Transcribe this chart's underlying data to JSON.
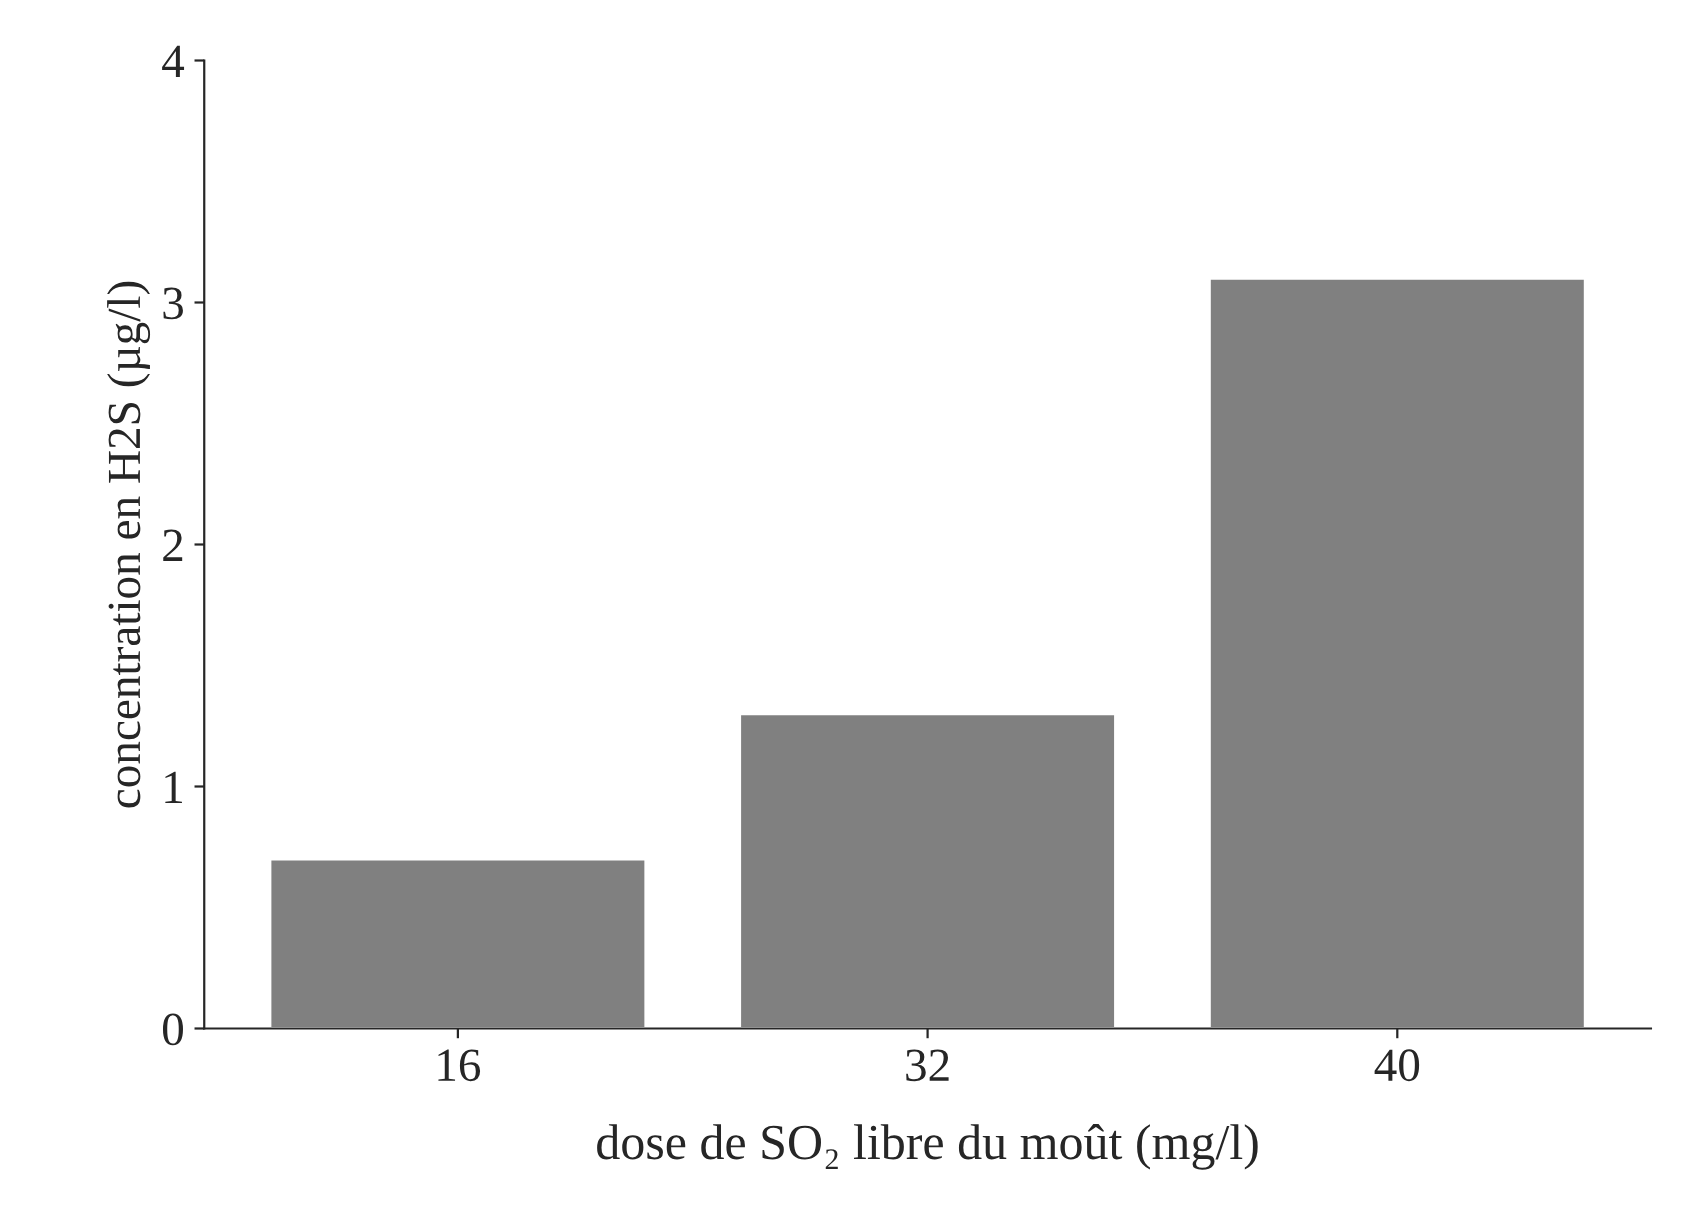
{
  "chart_data": {
    "type": "bar",
    "xlabel": "dose de SO₂ libre du moût (mg/l)",
    "ylabel": "concentration en H2S (µg/l)",
    "categories": [
      "16",
      "32",
      "40"
    ],
    "values": [
      0.7,
      1.3,
      3.1
    ],
    "color": "#808080",
    "ylim": [
      0,
      4
    ],
    "yticks": [
      0,
      1,
      2,
      3,
      4
    ],
    "grid": false,
    "legend": false
  }
}
